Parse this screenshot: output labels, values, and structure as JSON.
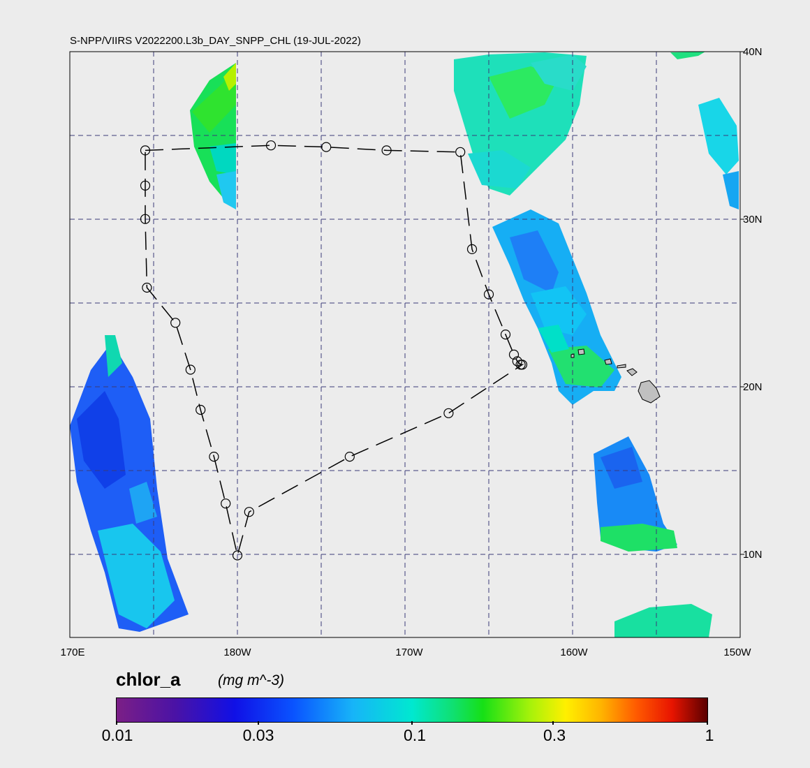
{
  "title": "S-NPP/VIIRS V2022200.L3b_DAY_SNPP_CHL (19-JUL-2022)",
  "lat_labels": [
    "40N",
    "30N",
    "20N",
    "10N"
  ],
  "lon_labels": [
    "170E",
    "180W",
    "170W",
    "160W",
    "150W"
  ],
  "colorbar": {
    "variable": "chlor_a",
    "units": "(mg m^-3)",
    "ticks": [
      "0.01",
      "0.03",
      "0.1",
      "0.3",
      "1"
    ],
    "scale": "log",
    "range": [
      0.01,
      1
    ]
  },
  "colors": {
    "background": "#ececec",
    "grid": "#3a3a78",
    "track": "#000000",
    "land": "#c0c0c0"
  },
  "map_extent": {
    "lon_min": 170,
    "lon_max": 210,
    "lat_min": 5,
    "lat_max": 40
  },
  "track_stations": [
    [
      174.5,
      34.1
    ],
    [
      182.0,
      34.4
    ],
    [
      185.3,
      34.3
    ],
    [
      188.9,
      34.1
    ],
    [
      193.3,
      34.0
    ],
    [
      194.0,
      28.2
    ],
    [
      195.0,
      25.5
    ],
    [
      196.0,
      23.1
    ],
    [
      196.5,
      21.9
    ],
    [
      196.7,
      21.5
    ],
    [
      196.9,
      21.3
    ],
    [
      197.0,
      21.3
    ],
    [
      192.6,
      18.4
    ],
    [
      186.7,
      15.8
    ],
    [
      180.7,
      12.5
    ],
    [
      180.0,
      9.9
    ],
    [
      179.3,
      13.0
    ],
    [
      178.6,
      15.8
    ],
    [
      177.8,
      18.6
    ],
    [
      177.2,
      21.0
    ],
    [
      176.3,
      23.8
    ],
    [
      174.6,
      25.9
    ],
    [
      174.5,
      30.0
    ],
    [
      174.5,
      32.0
    ]
  ]
}
